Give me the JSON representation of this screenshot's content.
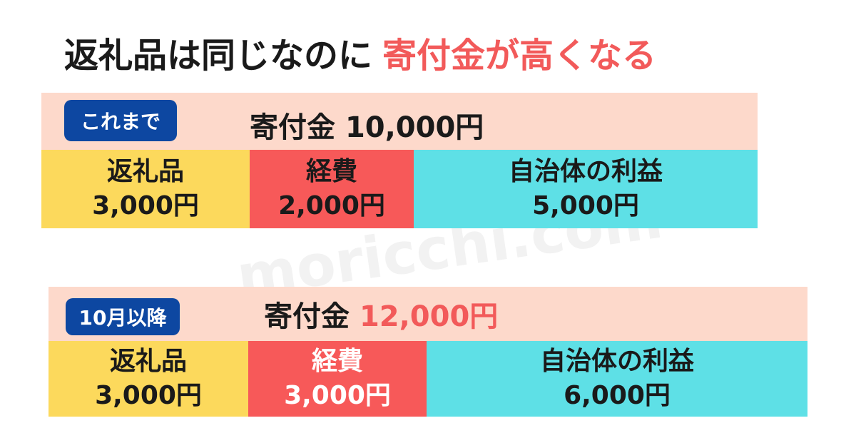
{
  "title": {
    "main": "返礼品は同じなのに",
    "highlight": "寄付金が高くなる"
  },
  "watermark": "moricchi.com",
  "sections": [
    {
      "badge": "これまで",
      "total_label": "寄付金",
      "total_amount": "10,000円",
      "segments": [
        {
          "label": "返礼品",
          "amount": "3,000円"
        },
        {
          "label": "経費",
          "amount": "2,000円"
        },
        {
          "label": "自治体の利益",
          "amount": "5,000円"
        }
      ]
    },
    {
      "badge": "10月以降",
      "total_label": "寄付金",
      "total_amount": "12,000円",
      "segments": [
        {
          "label": "返礼品",
          "amount": "3,000円"
        },
        {
          "label": "経費",
          "amount": "3,000円"
        },
        {
          "label": "自治体の利益",
          "amount": "6,000円"
        }
      ]
    }
  ]
}
